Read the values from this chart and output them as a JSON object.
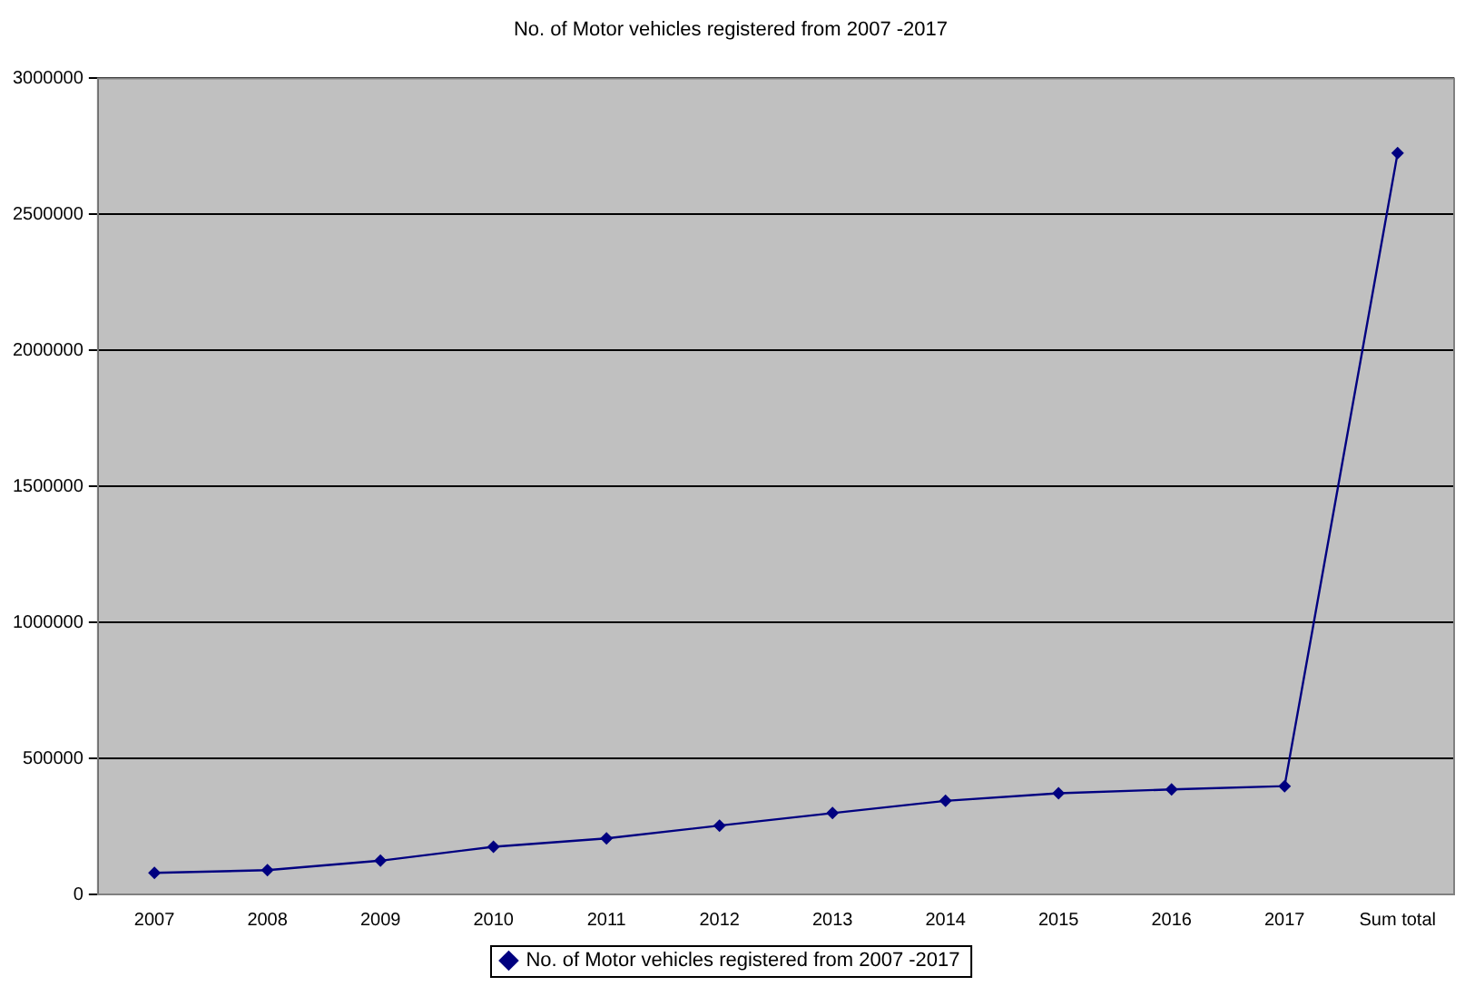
{
  "chart_data": {
    "type": "line",
    "title": "No. of Motor vehicles registered from 2007 -2017",
    "categories": [
      "2007",
      "2008",
      "2009",
      "2010",
      "2011",
      "2012",
      "2013",
      "2014",
      "2015",
      "2016",
      "2017",
      "Sum total"
    ],
    "series": [
      {
        "name": "No. of Motor vehicles registered from 2007 -2017",
        "color": "#000080",
        "values": [
          79000,
          89000,
          124000,
          175000,
          206000,
          253000,
          299000,
          344000,
          372000,
          386000,
          398000,
          2725000
        ]
      }
    ],
    "ylim": [
      0,
      3000000
    ],
    "yticks": [
      0,
      500000,
      1000000,
      1500000,
      2000000,
      2500000,
      3000000
    ],
    "grid": "y",
    "legend": "bottom",
    "marker": "diamond",
    "line_style": "solid"
  }
}
